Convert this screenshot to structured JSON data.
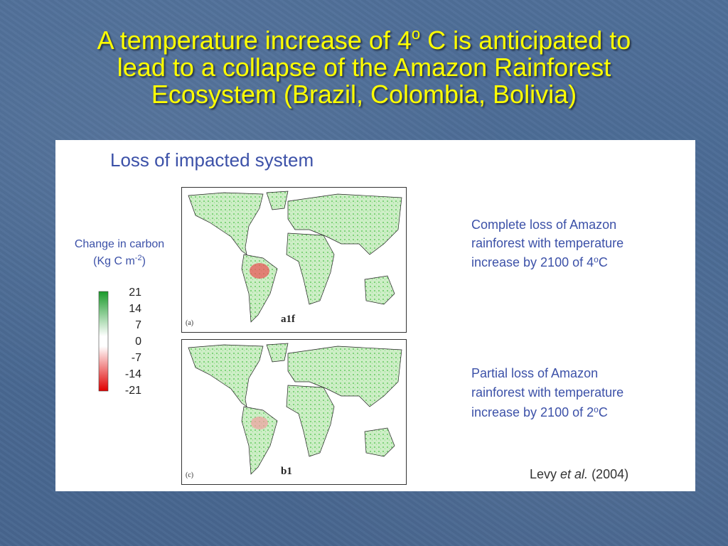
{
  "title": {
    "line1_before": "A temperature increase of 4",
    "line1_superscript": "o",
    "line1_after": " C is anticipated to",
    "line2": "lead to a collapse of the Amazon Rainforest",
    "line3": "Ecosystem (Brazil, Colombia, Bolivia)"
  },
  "figure": {
    "heading": "Loss of impacted system",
    "legend": {
      "title_line1": "Change in carbon",
      "title_line2_before": "(Kg C m",
      "title_line2_superscript": "-2",
      "title_line2_after": ")",
      "ticks": [
        21,
        14,
        7,
        0,
        -7,
        -14,
        -21
      ]
    },
    "maps": [
      {
        "panel": "(a)",
        "scenario": "a1f"
      },
      {
        "panel": "(c)",
        "scenario": "b1"
      }
    ],
    "descriptions": [
      {
        "lines": [
          "Complete loss of Amazon",
          "rainforest with temperature",
          "increase by 2100 of 4"
        ],
        "superscript": "o",
        "unit": "C"
      },
      {
        "lines": [
          "Partial loss of Amazon",
          "rainforest with temperature",
          "increase by 2100 of 2"
        ],
        "superscript": "o",
        "unit": "C"
      }
    ],
    "citation": {
      "before": "Levy ",
      "italic": "et al.",
      "after": " (2004)"
    }
  }
}
